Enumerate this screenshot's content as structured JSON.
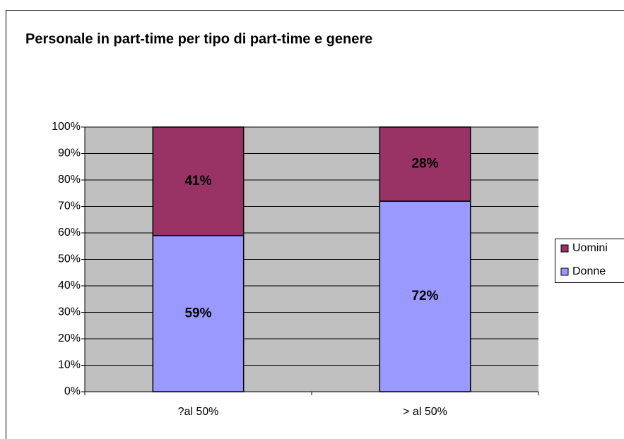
{
  "chart_data": {
    "type": "stacked-bar",
    "title": "Personale in part-time per tipo di part-time e genere",
    "categories": [
      "?al 50%",
      "> al 50%"
    ],
    "series": [
      {
        "name": "Donne",
        "color": "#9999ff",
        "values": [
          59,
          72
        ],
        "value_labels": [
          "59%",
          "72%"
        ]
      },
      {
        "name": "Uomini",
        "color": "#993366",
        "values": [
          41,
          28
        ],
        "value_labels": [
          "41%",
          "28%"
        ]
      }
    ],
    "ylim": [
      0,
      100
    ],
    "yticks": [
      {
        "value": 0,
        "label": "0%"
      },
      {
        "value": 10,
        "label": "10%"
      },
      {
        "value": 20,
        "label": "20%"
      },
      {
        "value": 30,
        "label": "30%"
      },
      {
        "value": 40,
        "label": "40%"
      },
      {
        "value": 50,
        "label": "50%"
      },
      {
        "value": 60,
        "label": "60%"
      },
      {
        "value": 70,
        "label": "70%"
      },
      {
        "value": 80,
        "label": "80%"
      },
      {
        "value": 90,
        "label": "90%"
      },
      {
        "value": 100,
        "label": "100%"
      }
    ],
    "grid": true,
    "legend": "right"
  }
}
